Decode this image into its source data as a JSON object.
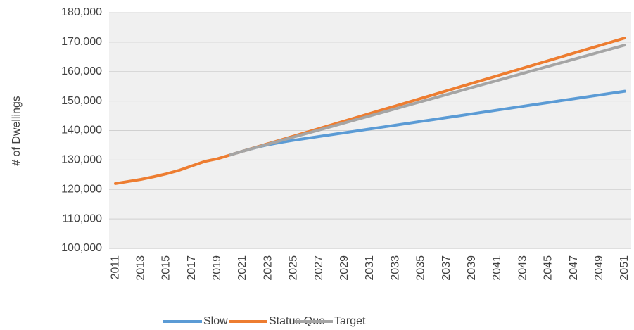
{
  "chart_data": {
    "type": "line",
    "y_label": "# of Dwellings",
    "categories": [
      "2011",
      null,
      "2013",
      null,
      "2015",
      null,
      "2017",
      null,
      "2019",
      null,
      "2021",
      null,
      "2023",
      null,
      "2025",
      null,
      "2027",
      null,
      "2029",
      null,
      "2031",
      null,
      "2033",
      null,
      "2035",
      null,
      "2037",
      null,
      "2039",
      null,
      "2041",
      null,
      "2043",
      null,
      "2045",
      null,
      "2047",
      null,
      "2049",
      null,
      "2051"
    ],
    "series": [
      {
        "name": "Slow",
        "color": "#5b9bd5",
        "values": [
          null,
          null,
          null,
          null,
          null,
          null,
          null,
          null,
          null,
          131700,
          133000,
          134200,
          135200,
          136000,
          136700,
          137340,
          137980,
          138620,
          139260,
          139900,
          140540,
          141180,
          141820,
          142460,
          143100,
          143740,
          144380,
          145020,
          145660,
          146300,
          146940,
          147580,
          148220,
          148860,
          149500,
          150140,
          150780,
          151420,
          152060,
          152700,
          153340
        ]
      },
      {
        "name": "Status Quo",
        "color": "#ed7d31",
        "values": [
          122000,
          122700,
          123400,
          124300,
          125300,
          126500,
          128000,
          129500,
          130400,
          131700,
          133000,
          134280,
          135560,
          136840,
          138120,
          139400,
          140680,
          141960,
          143240,
          144520,
          145800,
          147080,
          148360,
          149640,
          150920,
          152200,
          153480,
          154760,
          156040,
          157320,
          158600,
          159880,
          161160,
          162440,
          163720,
          165000,
          166280,
          167560,
          168840,
          170120,
          171400
        ]
      },
      {
        "name": "Target",
        "color": "#a5a5a5",
        "values": [
          null,
          null,
          null,
          null,
          null,
          null,
          null,
          null,
          null,
          131700,
          133000,
          134200,
          135400,
          136600,
          137800,
          139000,
          140200,
          141400,
          142600,
          143800,
          145000,
          146200,
          147400,
          148600,
          149800,
          151000,
          152200,
          153400,
          154600,
          155800,
          157000,
          158200,
          159400,
          160600,
          161800,
          163000,
          164200,
          165400,
          166600,
          167800,
          169000
        ]
      }
    ],
    "ylim": [
      100000,
      180000
    ],
    "yticks": [
      {
        "value": 100000,
        "label": "100,000"
      },
      {
        "value": 110000,
        "label": "110,000"
      },
      {
        "value": 120000,
        "label": "120,000"
      },
      {
        "value": 130000,
        "label": "130,000"
      },
      {
        "value": 140000,
        "label": "140,000"
      },
      {
        "value": 150000,
        "label": "150,000"
      },
      {
        "value": 160000,
        "label": "160,000"
      },
      {
        "value": 170000,
        "label": "170,000"
      },
      {
        "value": 180000,
        "label": "180,000"
      }
    ],
    "grid": true,
    "legend": "bottom"
  }
}
